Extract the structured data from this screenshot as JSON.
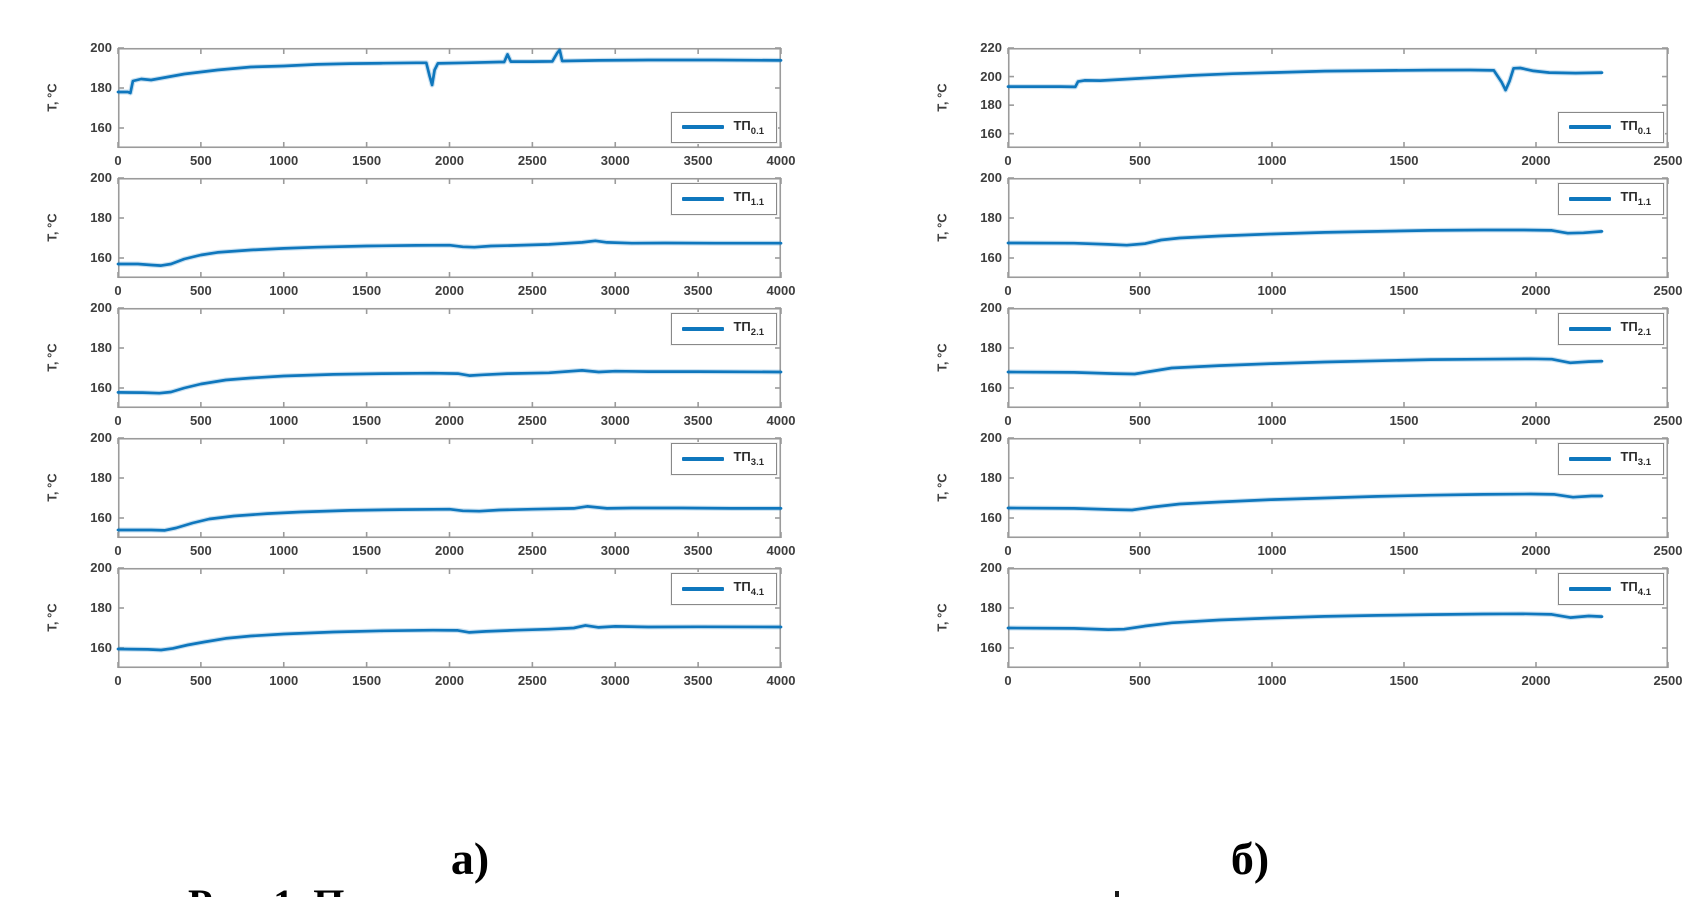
{
  "figure": {
    "ylabel": "T, °C",
    "caption_left": "а)",
    "caption_right": "б)",
    "caption_bottom_partial": "Рис. 1. П",
    "line_color": "#0f77bd",
    "axis_color": "#9b9b9b",
    "label_color": "#3d3d3d"
  },
  "chart_data": [
    {
      "type": "line",
      "panel": "a",
      "row": 0,
      "legend": {
        "text": "ТП",
        "sub": "0.1",
        "position": "bottom-right"
      },
      "xlim": [
        0,
        4000
      ],
      "ylim": [
        150,
        200
      ],
      "xticks": [
        0,
        500,
        1000,
        1500,
        2000,
        2500,
        3000,
        3500,
        4000
      ],
      "yticks": [
        200,
        180,
        160
      ],
      "points": [
        [
          0,
          178
        ],
        [
          60,
          178
        ],
        [
          75,
          177.5
        ],
        [
          90,
          183.5
        ],
        [
          140,
          184.5
        ],
        [
          200,
          184
        ],
        [
          300,
          185.5
        ],
        [
          400,
          187
        ],
        [
          500,
          188
        ],
        [
          600,
          189
        ],
        [
          800,
          190.5
        ],
        [
          1000,
          191
        ],
        [
          1200,
          191.8
        ],
        [
          1400,
          192.2
        ],
        [
          1600,
          192.4
        ],
        [
          1800,
          192.6
        ],
        [
          1860,
          192.6
        ],
        [
          1880,
          186
        ],
        [
          1895,
          181.5
        ],
        [
          1910,
          189
        ],
        [
          1930,
          192.3
        ],
        [
          2100,
          192.6
        ],
        [
          2300,
          193
        ],
        [
          2330,
          193
        ],
        [
          2350,
          196.8
        ],
        [
          2370,
          193.2
        ],
        [
          2500,
          193.2
        ],
        [
          2620,
          193.3
        ],
        [
          2650,
          197.5
        ],
        [
          2665,
          199
        ],
        [
          2680,
          193.5
        ],
        [
          2900,
          193.8
        ],
        [
          3200,
          194
        ],
        [
          3600,
          194
        ],
        [
          4000,
          193.8
        ]
      ]
    },
    {
      "type": "line",
      "panel": "a",
      "row": 1,
      "legend": {
        "text": "ТП",
        "sub": "1.1",
        "position": "top-right"
      },
      "xlim": [
        0,
        4000
      ],
      "ylim": [
        150,
        200
      ],
      "xticks": [
        0,
        500,
        1000,
        1500,
        2000,
        2500,
        3000,
        3500,
        4000
      ],
      "yticks": [
        200,
        180,
        160
      ],
      "points": [
        [
          0,
          157
        ],
        [
          120,
          157
        ],
        [
          200,
          156.5
        ],
        [
          260,
          156.2
        ],
        [
          320,
          157
        ],
        [
          400,
          159.5
        ],
        [
          500,
          161.5
        ],
        [
          600,
          162.8
        ],
        [
          800,
          164
        ],
        [
          1000,
          164.8
        ],
        [
          1200,
          165.4
        ],
        [
          1500,
          166
        ],
        [
          1800,
          166.3
        ],
        [
          2000,
          166.4
        ],
        [
          2080,
          165.6
        ],
        [
          2150,
          165.4
        ],
        [
          2250,
          166
        ],
        [
          2400,
          166.3
        ],
        [
          2600,
          166.8
        ],
        [
          2800,
          167.8
        ],
        [
          2880,
          168.6
        ],
        [
          2950,
          167.8
        ],
        [
          3100,
          167.4
        ],
        [
          3300,
          167.5
        ],
        [
          3600,
          167.4
        ],
        [
          4000,
          167.4
        ]
      ]
    },
    {
      "type": "line",
      "panel": "a",
      "row": 2,
      "legend": {
        "text": "ТП",
        "sub": "2.1",
        "position": "top-right"
      },
      "xlim": [
        0,
        4000
      ],
      "ylim": [
        150,
        200
      ],
      "xticks": [
        0,
        500,
        1000,
        1500,
        2000,
        2500,
        3000,
        3500,
        4000
      ],
      "yticks": [
        200,
        180,
        160
      ],
      "points": [
        [
          0,
          157.8
        ],
        [
          150,
          157.7
        ],
        [
          250,
          157.4
        ],
        [
          320,
          158
        ],
        [
          400,
          160
        ],
        [
          500,
          162
        ],
        [
          650,
          164
        ],
        [
          800,
          165
        ],
        [
          1000,
          166
        ],
        [
          1300,
          166.8
        ],
        [
          1600,
          167.2
        ],
        [
          1900,
          167.4
        ],
        [
          2050,
          167.2
        ],
        [
          2120,
          166.2
        ],
        [
          2200,
          166.6
        ],
        [
          2350,
          167.2
        ],
        [
          2600,
          167.6
        ],
        [
          2800,
          168.8
        ],
        [
          2900,
          168
        ],
        [
          3000,
          168.4
        ],
        [
          3200,
          168.2
        ],
        [
          3500,
          168.2
        ],
        [
          4000,
          168
        ]
      ]
    },
    {
      "type": "line",
      "panel": "a",
      "row": 3,
      "legend": {
        "text": "ТП",
        "sub": "3.1",
        "position": "top-right"
      },
      "xlim": [
        0,
        4000
      ],
      "ylim": [
        150,
        200
      ],
      "xticks": [
        0,
        500,
        1000,
        1500,
        2000,
        2500,
        3000,
        3500,
        4000
      ],
      "yticks": [
        200,
        180,
        160
      ],
      "points": [
        [
          0,
          154
        ],
        [
          200,
          154
        ],
        [
          280,
          153.8
        ],
        [
          350,
          155
        ],
        [
          450,
          157.5
        ],
        [
          550,
          159.5
        ],
        [
          700,
          161
        ],
        [
          900,
          162.2
        ],
        [
          1100,
          163
        ],
        [
          1400,
          163.8
        ],
        [
          1700,
          164.2
        ],
        [
          2000,
          164.4
        ],
        [
          2080,
          163.6
        ],
        [
          2180,
          163.4
        ],
        [
          2300,
          164
        ],
        [
          2500,
          164.4
        ],
        [
          2750,
          164.8
        ],
        [
          2830,
          165.8
        ],
        [
          2950,
          164.8
        ],
        [
          3100,
          165
        ],
        [
          3400,
          165
        ],
        [
          3700,
          164.8
        ],
        [
          4000,
          164.8
        ]
      ]
    },
    {
      "type": "line",
      "panel": "a",
      "row": 4,
      "legend": {
        "text": "ТП",
        "sub": "4.1",
        "position": "top-right"
      },
      "xlim": [
        0,
        4000
      ],
      "ylim": [
        150,
        200
      ],
      "xticks": [
        0,
        500,
        1000,
        1500,
        2000,
        2500,
        3000,
        3500,
        4000
      ],
      "yticks": [
        200,
        180,
        160
      ],
      "points": [
        [
          0,
          159.5
        ],
        [
          180,
          159.3
        ],
        [
          260,
          159
        ],
        [
          330,
          159.8
        ],
        [
          420,
          161.5
        ],
        [
          520,
          163
        ],
        [
          650,
          164.8
        ],
        [
          800,
          166
        ],
        [
          1000,
          167
        ],
        [
          1300,
          168
        ],
        [
          1600,
          168.6
        ],
        [
          1900,
          168.9
        ],
        [
          2050,
          168.8
        ],
        [
          2120,
          167.8
        ],
        [
          2220,
          168.3
        ],
        [
          2400,
          168.9
        ],
        [
          2600,
          169.4
        ],
        [
          2750,
          170
        ],
        [
          2820,
          171.3
        ],
        [
          2900,
          170.3
        ],
        [
          3000,
          170.8
        ],
        [
          3200,
          170.5
        ],
        [
          3500,
          170.6
        ],
        [
          4000,
          170.5
        ]
      ]
    },
    {
      "type": "line",
      "panel": "b",
      "row": 0,
      "legend": {
        "text": "ТП",
        "sub": "0.1",
        "position": "bottom-right"
      },
      "xlim": [
        0,
        2500
      ],
      "ylim": [
        150,
        220
      ],
      "xticks": [
        0,
        500,
        1000,
        1500,
        2000,
        2500
      ],
      "yticks": [
        220,
        200,
        180,
        160
      ],
      "points": [
        [
          0,
          193
        ],
        [
          200,
          193
        ],
        [
          255,
          192.8
        ],
        [
          265,
          196.5
        ],
        [
          290,
          197.3
        ],
        [
          350,
          197.2
        ],
        [
          450,
          198.2
        ],
        [
          550,
          199.3
        ],
        [
          700,
          200.8
        ],
        [
          850,
          202
        ],
        [
          1000,
          202.8
        ],
        [
          1200,
          203.8
        ],
        [
          1400,
          204.2
        ],
        [
          1600,
          204.5
        ],
        [
          1750,
          204.6
        ],
        [
          1840,
          204.3
        ],
        [
          1870,
          196
        ],
        [
          1885,
          190.5
        ],
        [
          1900,
          197
        ],
        [
          1915,
          205.8
        ],
        [
          1940,
          206
        ],
        [
          1990,
          204
        ],
        [
          2050,
          202.8
        ],
        [
          2150,
          202.4
        ],
        [
          2250,
          202.8
        ]
      ]
    },
    {
      "type": "line",
      "panel": "b",
      "row": 1,
      "legend": {
        "text": "ТП",
        "sub": "1.1",
        "position": "top-right"
      },
      "xlim": [
        0,
        2500
      ],
      "ylim": [
        150,
        200
      ],
      "xticks": [
        0,
        500,
        1000,
        1500,
        2000,
        2500
      ],
      "yticks": [
        200,
        180,
        160
      ],
      "points": [
        [
          0,
          167.5
        ],
        [
          250,
          167.4
        ],
        [
          380,
          166.8
        ],
        [
          450,
          166.4
        ],
        [
          520,
          167.2
        ],
        [
          580,
          169
        ],
        [
          650,
          170
        ],
        [
          800,
          171
        ],
        [
          1000,
          172
        ],
        [
          1200,
          172.8
        ],
        [
          1400,
          173.3
        ],
        [
          1600,
          173.8
        ],
        [
          1800,
          174
        ],
        [
          1950,
          174
        ],
        [
          2060,
          173.8
        ],
        [
          2120,
          172.4
        ],
        [
          2180,
          172.6
        ],
        [
          2250,
          173.3
        ]
      ]
    },
    {
      "type": "line",
      "panel": "b",
      "row": 2,
      "legend": {
        "text": "ТП",
        "sub": "2.1",
        "position": "top-right"
      },
      "xlim": [
        0,
        2500
      ],
      "ylim": [
        150,
        200
      ],
      "xticks": [
        0,
        500,
        1000,
        1500,
        2000,
        2500
      ],
      "yticks": [
        200,
        180,
        160
      ],
      "points": [
        [
          0,
          168
        ],
        [
          250,
          167.8
        ],
        [
          400,
          167.2
        ],
        [
          480,
          167
        ],
        [
          550,
          168.5
        ],
        [
          620,
          170
        ],
        [
          800,
          171.2
        ],
        [
          1000,
          172.2
        ],
        [
          1200,
          173
        ],
        [
          1400,
          173.6
        ],
        [
          1600,
          174.2
        ],
        [
          1800,
          174.4
        ],
        [
          1980,
          174.6
        ],
        [
          2060,
          174.4
        ],
        [
          2130,
          172.6
        ],
        [
          2200,
          173.2
        ],
        [
          2250,
          173.4
        ]
      ]
    },
    {
      "type": "line",
      "panel": "b",
      "row": 3,
      "legend": {
        "text": "ТП",
        "sub": "3.1",
        "position": "top-right"
      },
      "xlim": [
        0,
        2500
      ],
      "ylim": [
        150,
        200
      ],
      "xticks": [
        0,
        500,
        1000,
        1500,
        2000,
        2500
      ],
      "yticks": [
        200,
        180,
        160
      ],
      "points": [
        [
          0,
          165
        ],
        [
          250,
          164.8
        ],
        [
          400,
          164.2
        ],
        [
          470,
          164
        ],
        [
          550,
          165.5
        ],
        [
          650,
          167
        ],
        [
          800,
          168
        ],
        [
          1000,
          169.2
        ],
        [
          1200,
          170
        ],
        [
          1400,
          170.8
        ],
        [
          1600,
          171.4
        ],
        [
          1800,
          171.8
        ],
        [
          1980,
          172
        ],
        [
          2070,
          171.8
        ],
        [
          2140,
          170.4
        ],
        [
          2210,
          171
        ],
        [
          2250,
          171
        ]
      ]
    },
    {
      "type": "line",
      "panel": "b",
      "row": 4,
      "legend": {
        "text": "ТП",
        "sub": "4.1",
        "position": "top-right"
      },
      "xlim": [
        0,
        2500
      ],
      "ylim": [
        150,
        200
      ],
      "xticks": [
        0,
        500,
        1000,
        1500,
        2000,
        2500
      ],
      "yticks": [
        200,
        180,
        160
      ],
      "points": [
        [
          0,
          170
        ],
        [
          250,
          169.8
        ],
        [
          380,
          169.2
        ],
        [
          440,
          169.4
        ],
        [
          520,
          171
        ],
        [
          620,
          172.6
        ],
        [
          800,
          174
        ],
        [
          1000,
          175
        ],
        [
          1200,
          175.8
        ],
        [
          1400,
          176.3
        ],
        [
          1600,
          176.7
        ],
        [
          1800,
          177
        ],
        [
          1950,
          177.1
        ],
        [
          2060,
          176.8
        ],
        [
          2130,
          175.2
        ],
        [
          2200,
          176
        ],
        [
          2250,
          175.7
        ]
      ]
    }
  ]
}
